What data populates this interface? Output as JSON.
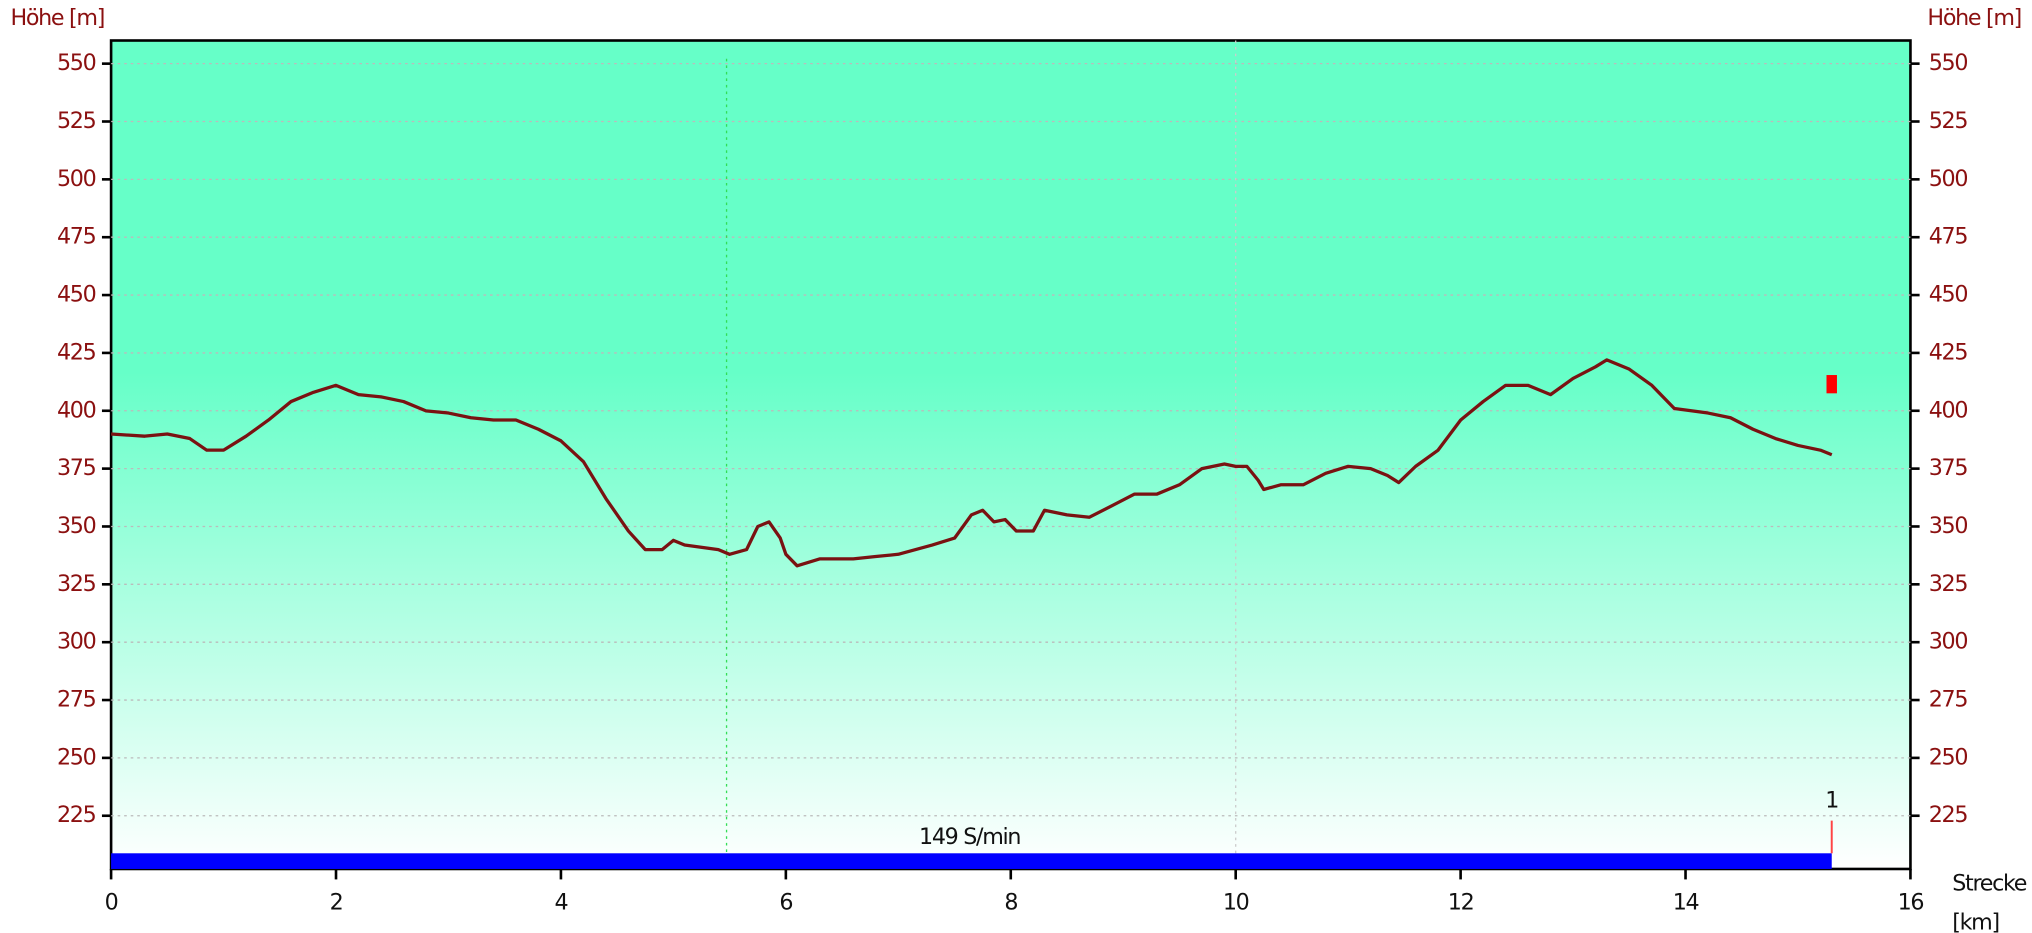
{
  "chart_data": {
    "type": "line",
    "y_label": "Höhe [m]",
    "x_label": "Strecke [km]",
    "color": "#7a1212",
    "x": [
      0,
      0.3,
      0.5,
      0.7,
      0.85,
      1.0,
      1.2,
      1.4,
      1.6,
      1.8,
      2.0,
      2.2,
      2.4,
      2.6,
      2.8,
      3.0,
      3.2,
      3.4,
      3.6,
      3.8,
      4.0,
      4.2,
      4.4,
      4.6,
      4.75,
      4.9,
      5.0,
      5.1,
      5.4,
      5.5,
      5.65,
      5.75,
      5.85,
      5.95,
      6.0,
      6.1,
      6.3,
      6.6,
      6.8,
      7.0,
      7.3,
      7.5,
      7.65,
      7.75,
      7.85,
      7.95,
      8.05,
      8.2,
      8.3,
      8.5,
      8.7,
      8.9,
      9.1,
      9.3,
      9.5,
      9.7,
      9.9,
      10.0,
      10.1,
      10.2,
      10.25,
      10.4,
      10.6,
      10.8,
      11.0,
      11.2,
      11.35,
      11.45,
      11.6,
      11.8,
      12.0,
      12.2,
      12.4,
      12.6,
      12.8,
      13.0,
      13.2,
      13.3,
      13.5,
      13.7,
      13.9,
      14.2,
      14.4,
      14.6,
      14.8,
      15.0,
      15.2,
      15.3
    ],
    "values": [
      390,
      389,
      390,
      388,
      383,
      383,
      389,
      396,
      404,
      408,
      411,
      407,
      406,
      404,
      400,
      399,
      397,
      396,
      396,
      392,
      387,
      378,
      362,
      348,
      340,
      340,
      344,
      342,
      340,
      338,
      340,
      350,
      352,
      345,
      338,
      333,
      336,
      336,
      337,
      338,
      342,
      345,
      355,
      357,
      352,
      353,
      348,
      348,
      357,
      355,
      354,
      359,
      364,
      364,
      368,
      375,
      377,
      376,
      376,
      370,
      366,
      368,
      368,
      373,
      376,
      375,
      372,
      369,
      376,
      383,
      396,
      404,
      411,
      411,
      407,
      414,
      419,
      422,
      418,
      411,
      401,
      399,
      397,
      392,
      388,
      385,
      383,
      381
    ],
    "xlim": [
      0,
      16
    ],
    "xticks": [
      0,
      2,
      4,
      6,
      8,
      10,
      12,
      14,
      16
    ],
    "ylim": [
      202,
      560
    ],
    "yticks": [
      225,
      250,
      275,
      300,
      325,
      350,
      375,
      400,
      425,
      450,
      475,
      500,
      525,
      550
    ],
    "grid": true,
    "cadence_label": "149 S/min",
    "lap_label": "1"
  }
}
